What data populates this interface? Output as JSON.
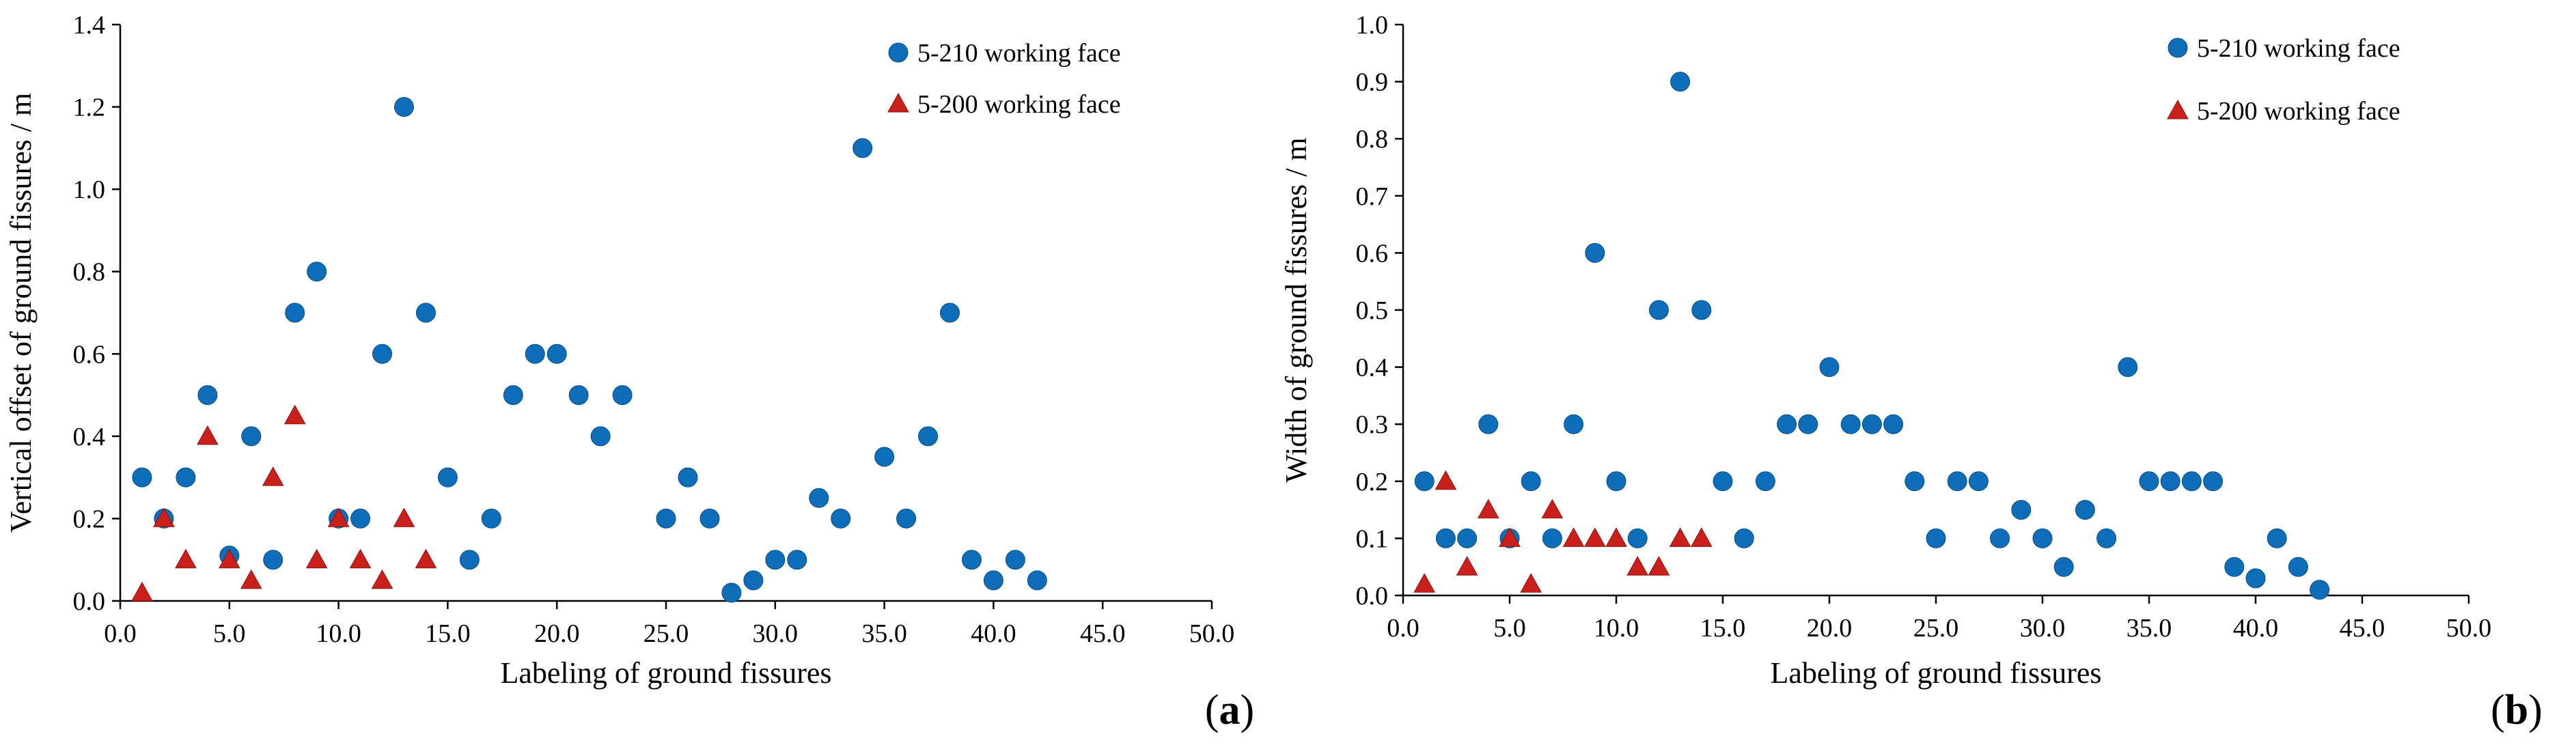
{
  "colors": {
    "series1": "#0d6db8",
    "series2": "#c9201c",
    "axis": "#000000"
  },
  "chart_data": [
    {
      "type": "scatter",
      "panel_label": "(a)",
      "xlabel": "Labeling of ground fissures",
      "ylabel": "Vertical offset of ground fissures / m",
      "xlim": [
        0,
        50
      ],
      "ylim": [
        0,
        1.4
      ],
      "xticks": [
        "0.0",
        "5.0",
        "10.0",
        "15.0",
        "20.0",
        "25.0",
        "30.0",
        "35.0",
        "40.0",
        "45.0",
        "50.0"
      ],
      "yticks": [
        "0.0",
        "0.2",
        "0.4",
        "0.6",
        "0.8",
        "1.0",
        "1.2",
        "1.4"
      ],
      "legend": "top-right",
      "series": [
        {
          "name": "5-210 working face",
          "marker": "circle",
          "points": [
            [
              1,
              0.3
            ],
            [
              2,
              0.2
            ],
            [
              3,
              0.3
            ],
            [
              4,
              0.5
            ],
            [
              5,
              0.11
            ],
            [
              6,
              0.4
            ],
            [
              7,
              0.1
            ],
            [
              8,
              0.7
            ],
            [
              9,
              0.8
            ],
            [
              10,
              0.2
            ],
            [
              11,
              0.2
            ],
            [
              12,
              0.6
            ],
            [
              13,
              1.2
            ],
            [
              14,
              0.7
            ],
            [
              15,
              0.3
            ],
            [
              16,
              0.1
            ],
            [
              17,
              0.2
            ],
            [
              18,
              0.5
            ],
            [
              19,
              0.6
            ],
            [
              20,
              0.6
            ],
            [
              21,
              0.5
            ],
            [
              22,
              0.4
            ],
            [
              23,
              0.5
            ],
            [
              25,
              0.2
            ],
            [
              26,
              0.3
            ],
            [
              27,
              0.2
            ],
            [
              28,
              0.02
            ],
            [
              29,
              0.05
            ],
            [
              30,
              0.1
            ],
            [
              31,
              0.1
            ],
            [
              32,
              0.25
            ],
            [
              33,
              0.2
            ],
            [
              34,
              1.1
            ],
            [
              35,
              0.35
            ],
            [
              36,
              0.2
            ],
            [
              37,
              0.4
            ],
            [
              38,
              0.7
            ],
            [
              39,
              0.1
            ],
            [
              40,
              0.05
            ],
            [
              41,
              0.1
            ],
            [
              42,
              0.05
            ]
          ]
        },
        {
          "name": "5-200 working face",
          "marker": "triangle",
          "points": [
            [
              1,
              0.02
            ],
            [
              2,
              0.2
            ],
            [
              3,
              0.1
            ],
            [
              4,
              0.4
            ],
            [
              5,
              0.1
            ],
            [
              6,
              0.05
            ],
            [
              7,
              0.3
            ],
            [
              8,
              0.45
            ],
            [
              9,
              0.1
            ],
            [
              10,
              0.2
            ],
            [
              11,
              0.1
            ],
            [
              12,
              0.05
            ],
            [
              13,
              0.2
            ],
            [
              14,
              0.1
            ]
          ]
        }
      ]
    },
    {
      "type": "scatter",
      "panel_label": "(b)",
      "xlabel": "Labeling of ground fissures",
      "ylabel": "Width of ground fissures / m",
      "xlim": [
        0,
        50
      ],
      "ylim": [
        0,
        1.0
      ],
      "xticks": [
        "0.0",
        "5.0",
        "10.0",
        "15.0",
        "20.0",
        "25.0",
        "30.0",
        "35.0",
        "40.0",
        "45.0",
        "50.0"
      ],
      "yticks": [
        "0.0",
        "0.1",
        "0.2",
        "0.3",
        "0.4",
        "0.5",
        "0.6",
        "0.7",
        "0.8",
        "0.9",
        "1.0"
      ],
      "legend": "top-right",
      "series": [
        {
          "name": "5-210 working face",
          "marker": "circle",
          "points": [
            [
              1,
              0.2
            ],
            [
              2,
              0.1
            ],
            [
              3,
              0.1
            ],
            [
              4,
              0.3
            ],
            [
              5,
              0.1
            ],
            [
              6,
              0.2
            ],
            [
              7,
              0.1
            ],
            [
              8,
              0.3
            ],
            [
              9,
              0.6
            ],
            [
              10,
              0.2
            ],
            [
              11,
              0.1
            ],
            [
              12,
              0.5
            ],
            [
              13,
              0.9
            ],
            [
              14,
              0.5
            ],
            [
              15,
              0.2
            ],
            [
              16,
              0.1
            ],
            [
              17,
              0.2
            ],
            [
              18,
              0.3
            ],
            [
              19,
              0.3
            ],
            [
              20,
              0.4
            ],
            [
              21,
              0.3
            ],
            [
              22,
              0.3
            ],
            [
              23,
              0.3
            ],
            [
              24,
              0.2
            ],
            [
              25,
              0.1
            ],
            [
              26,
              0.2
            ],
            [
              27,
              0.2
            ],
            [
              28,
              0.1
            ],
            [
              29,
              0.15
            ],
            [
              30,
              0.1
            ],
            [
              31,
              0.05
            ],
            [
              32,
              0.15
            ],
            [
              33,
              0.1
            ],
            [
              34,
              0.4
            ],
            [
              35,
              0.2
            ],
            [
              36,
              0.2
            ],
            [
              37,
              0.2
            ],
            [
              38,
              0.2
            ],
            [
              39,
              0.05
            ],
            [
              40,
              0.03
            ],
            [
              41,
              0.1
            ],
            [
              42,
              0.05
            ],
            [
              43,
              0.01
            ]
          ]
        },
        {
          "name": "5-200 working face",
          "marker": "triangle",
          "points": [
            [
              1,
              0.02
            ],
            [
              2,
              0.2
            ],
            [
              3,
              0.05
            ],
            [
              4,
              0.15
            ],
            [
              5,
              0.1
            ],
            [
              6,
              0.02
            ],
            [
              7,
              0.15
            ],
            [
              8,
              0.1
            ],
            [
              9,
              0.1
            ],
            [
              10,
              0.1
            ],
            [
              11,
              0.05
            ],
            [
              12,
              0.05
            ],
            [
              13,
              0.1
            ],
            [
              14,
              0.1
            ]
          ]
        }
      ]
    }
  ]
}
